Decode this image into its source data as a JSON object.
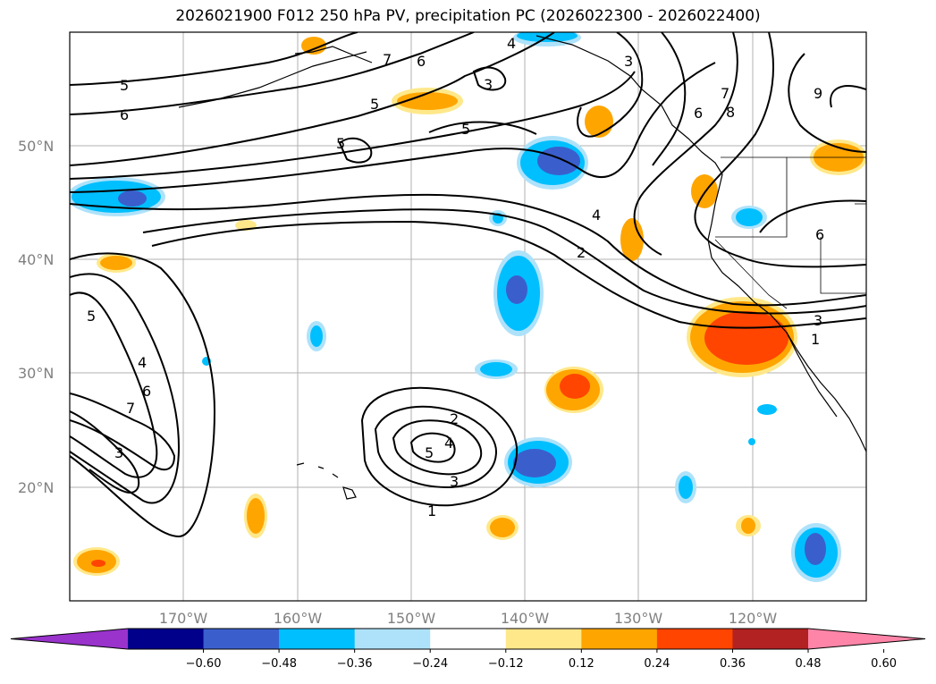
{
  "title": "2026021900 F012 250 hPa PV, precipitation PC (2026022300 - 2026022400)",
  "lat_ticks": [
    "50°N",
    "40°N",
    "30°N",
    "20°N"
  ],
  "lon_ticks": [
    "170°W",
    "160°W",
    "150°W",
    "140°W",
    "130°W",
    "120°W"
  ],
  "colorbar": {
    "tick_labels": [
      "−0.60",
      "−0.48",
      "−0.36",
      "−0.24",
      "−0.12",
      "0.12",
      "0.24",
      "0.36",
      "0.48",
      "0.60"
    ],
    "colors": [
      "#9933cc",
      "#00008b",
      "#3a5fcd",
      "#00bfff",
      "#aee2fa",
      "#ffffff",
      "#ffe88a",
      "#ffa500",
      "#ff4500",
      "#b22222",
      "#ff85a8"
    ]
  },
  "pv_labels": [
    "5",
    "6",
    "7",
    "6",
    "4",
    "3",
    "3",
    "5",
    "5",
    "5",
    "6",
    "7",
    "8",
    "9",
    "4",
    "2",
    "6",
    "3",
    "1",
    "5",
    "4",
    "6",
    "7",
    "3",
    "2",
    "4",
    "5",
    "3",
    "1"
  ]
}
